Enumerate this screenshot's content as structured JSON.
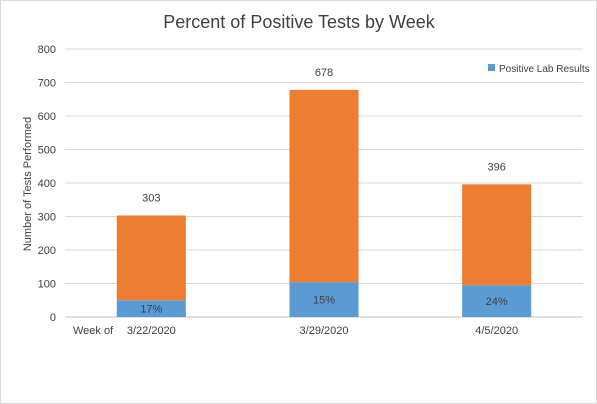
{
  "chart_data": {
    "type": "bar",
    "stacked": true,
    "title": "Percent of Positive Tests by Week",
    "xlabel": "Week of",
    "ylabel": "Number of Tests Performed",
    "ylim": [
      0,
      800
    ],
    "yticks": [
      0,
      100,
      200,
      300,
      400,
      500,
      600,
      700,
      800
    ],
    "grid": true,
    "legend_position": "top-right",
    "categories": [
      "3/22/2020",
      "3/29/2020",
      "4/5/2020"
    ],
    "totals": [
      303,
      678,
      396
    ],
    "series": [
      {
        "name": "Positive Lab Results",
        "values": [
          50,
          104,
          95
        ],
        "labels": [
          "17%",
          "15%",
          "24%"
        ],
        "color": "#5b9bd5"
      },
      {
        "values": [
          253,
          574,
          301
        ],
        "color": "#ed7d31"
      }
    ]
  }
}
